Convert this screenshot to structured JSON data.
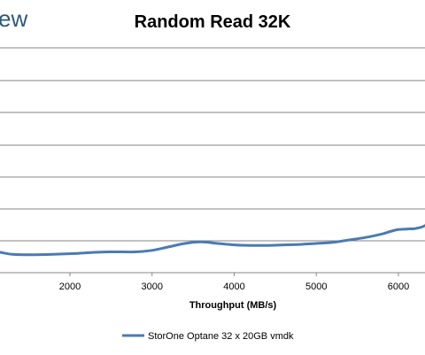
{
  "header": {
    "fragment": "ew"
  },
  "chart_data": {
    "type": "line",
    "title": "Random Read 32K",
    "xlabel": "Throughput (MB/s)",
    "ylabel": "",
    "x_ticks": [
      "2000",
      "3000",
      "4000",
      "5000",
      "6000"
    ],
    "grid": true,
    "legend_position": "bottom",
    "series": [
      {
        "name": "StorOne Optane 32 x 20GB vmdk",
        "color": "#4a7ab5",
        "x": [
          1150,
          1300,
          1500,
          1800,
          2100,
          2300,
          2500,
          2800,
          3000,
          3200,
          3400,
          3600,
          3800,
          4000,
          4200,
          4400,
          4600,
          4800,
          5000,
          5200,
          5400,
          5600,
          5800,
          5900,
          6000,
          6100,
          6200,
          6300,
          6400
        ],
        "y": [
          0.41,
          0.37,
          0.36,
          0.37,
          0.39,
          0.41,
          0.42,
          0.42,
          0.45,
          0.52,
          0.59,
          0.62,
          0.59,
          0.56,
          0.55,
          0.55,
          0.56,
          0.57,
          0.59,
          0.61,
          0.66,
          0.71,
          0.78,
          0.83,
          0.87,
          0.88,
          0.89,
          0.93,
          1.03
        ]
      }
    ]
  }
}
